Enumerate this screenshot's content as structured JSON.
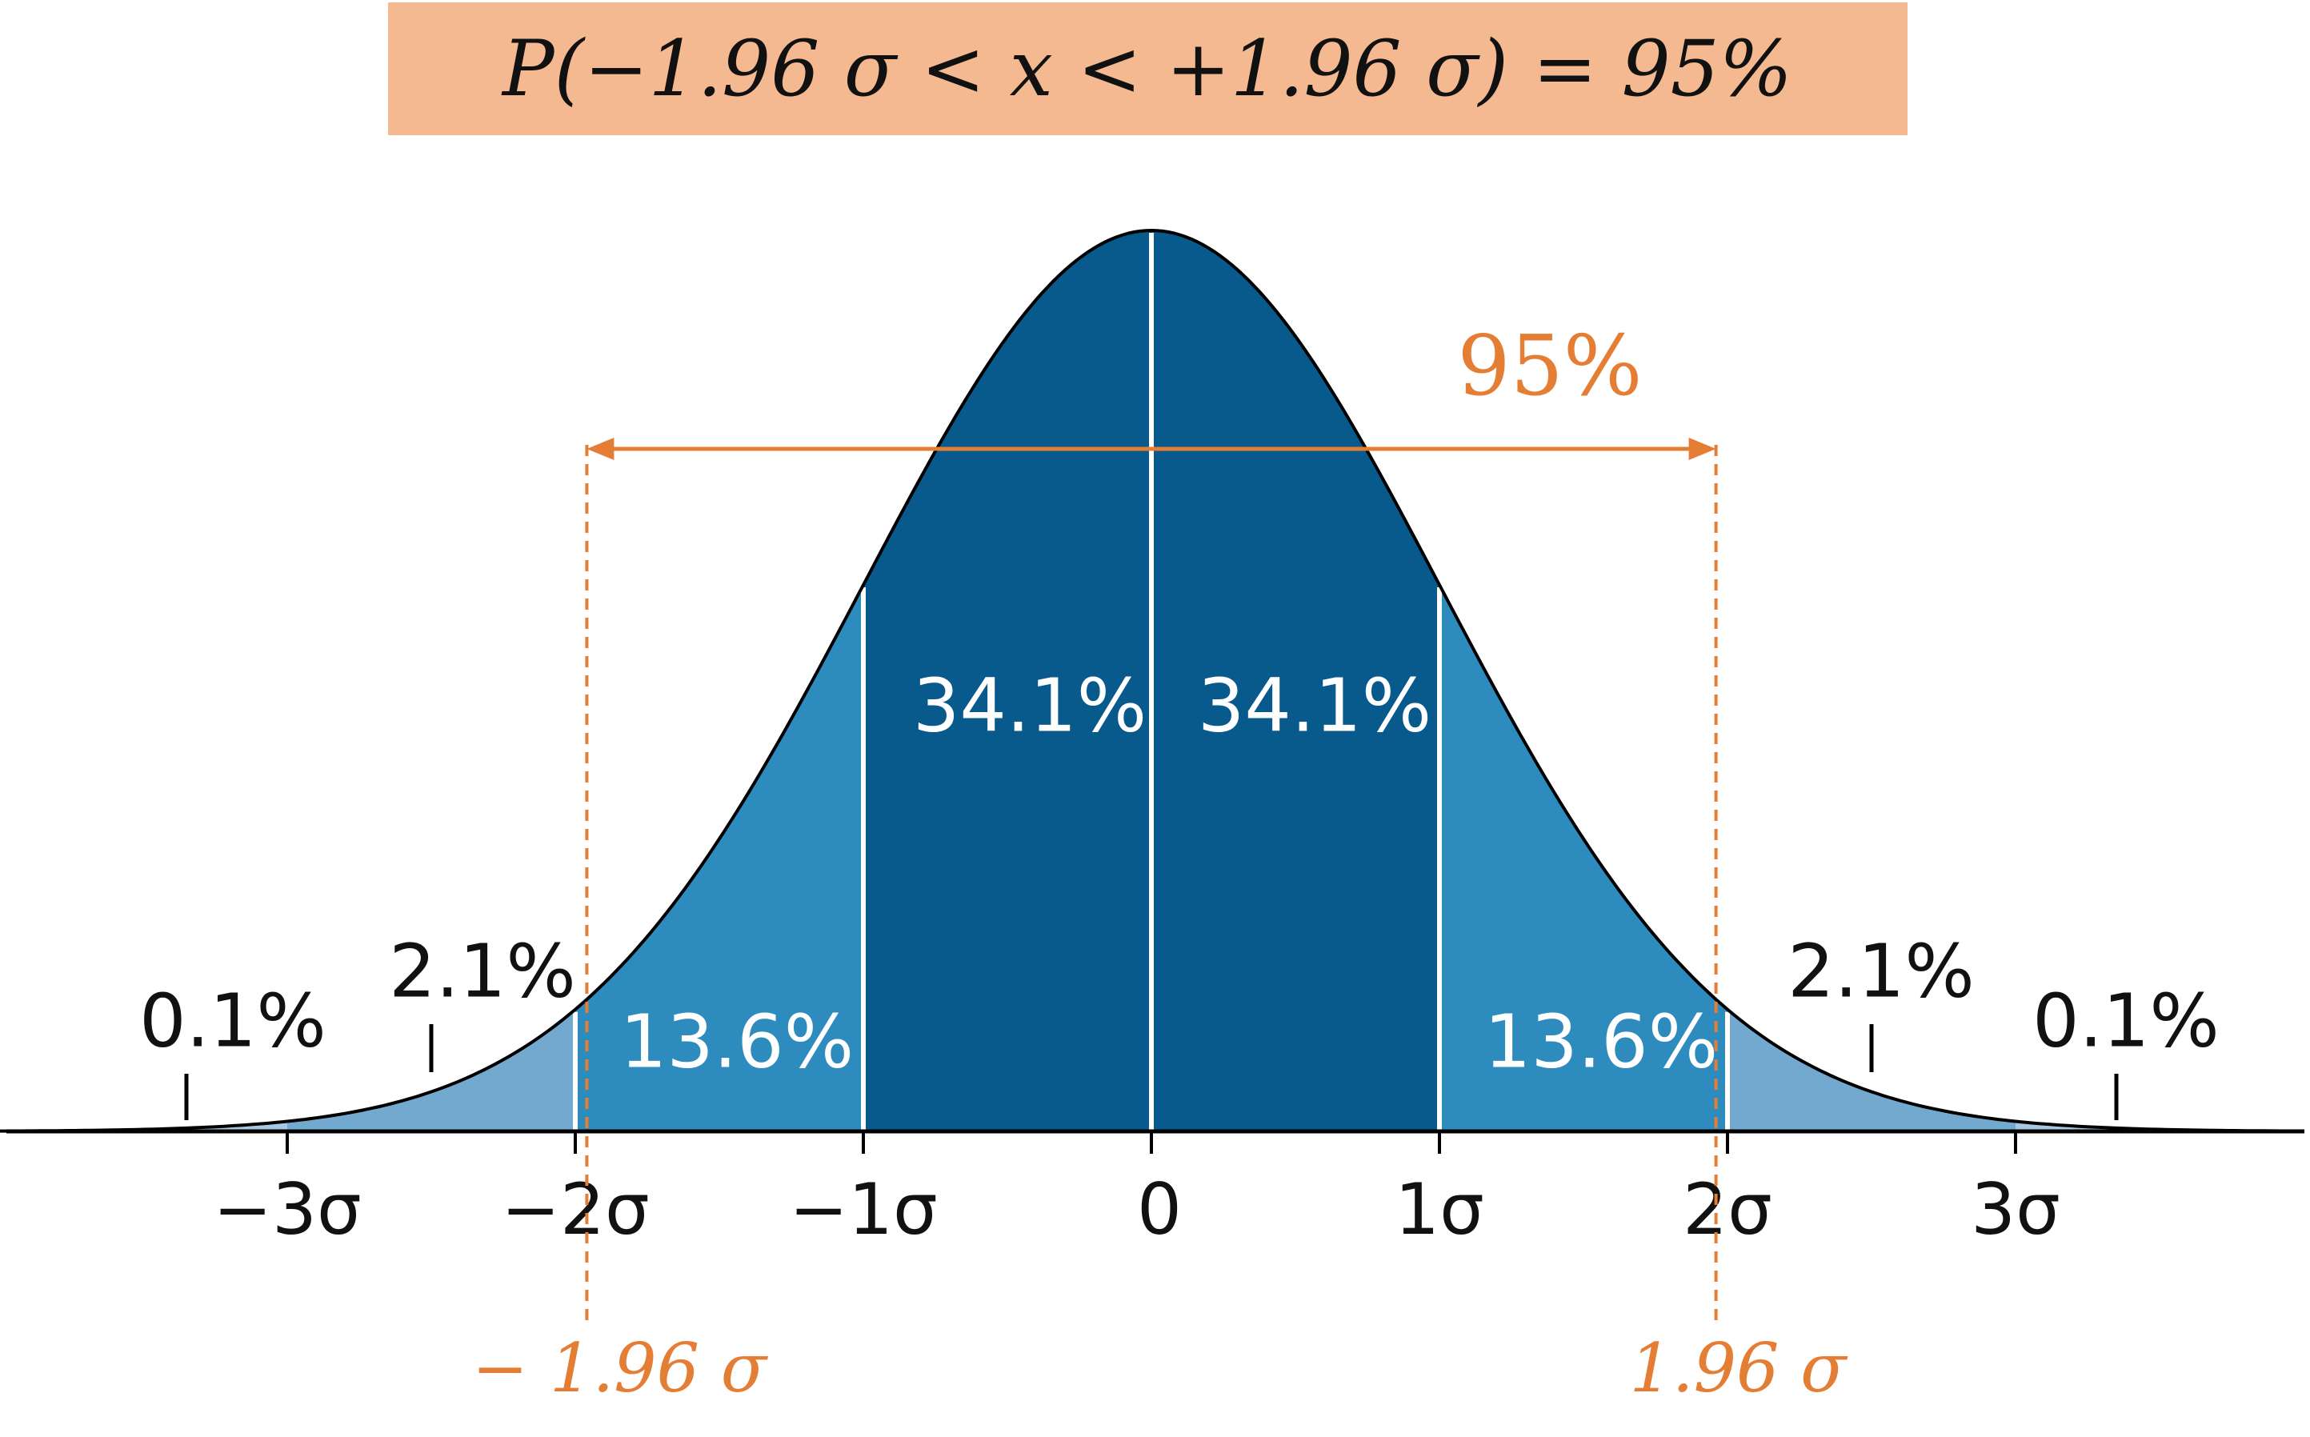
{
  "formula": {
    "text": "P(−1.96 σ < x < +1.96 σ) = 95%",
    "background": "#f4b990"
  },
  "colors": {
    "band_1sigma": "#08598c",
    "band_2sigma": "#2e8bbd",
    "band_3sigma": "#74a9cf",
    "band_tail": "#a6c8e2",
    "curve": "#000000",
    "divider": "#ffffff",
    "highlight": "#e57e35",
    "text_dark": "#111111",
    "text_light": "#ffffff"
  },
  "chart_data": {
    "type": "area",
    "distribution": "standard-normal",
    "xlim": [
      -4,
      4
    ],
    "ticks": [
      {
        "value": -3,
        "label": "−3σ"
      },
      {
        "value": -2,
        "label": "−2σ"
      },
      {
        "value": -1,
        "label": "−1σ"
      },
      {
        "value": 0,
        "label": "0"
      },
      {
        "value": 1,
        "label": "1σ"
      },
      {
        "value": 2,
        "label": "2σ"
      },
      {
        "value": 3,
        "label": "3σ"
      }
    ],
    "bands": [
      {
        "from": -1,
        "to": 0,
        "percent": "34.1%",
        "color_key": "band_1sigma"
      },
      {
        "from": 0,
        "to": 1,
        "percent": "34.1%",
        "color_key": "band_1sigma"
      },
      {
        "from": -2,
        "to": -1,
        "percent": "13.6%",
        "color_key": "band_2sigma"
      },
      {
        "from": 1,
        "to": 2,
        "percent": "13.6%",
        "color_key": "band_2sigma"
      },
      {
        "from": -3,
        "to": -2,
        "percent": "2.1%",
        "color_key": "band_3sigma"
      },
      {
        "from": 2,
        "to": 3,
        "percent": "2.1%",
        "color_key": "band_3sigma"
      },
      {
        "from": -4,
        "to": -3,
        "percent": "0.1%",
        "color_key": "band_tail"
      },
      {
        "from": 3,
        "to": 4,
        "percent": "0.1%",
        "color_key": "band_tail"
      }
    ],
    "interval": {
      "lower": -1.96,
      "upper": 1.96,
      "lower_label": "− 1.96 σ",
      "upper_label": "1.96 σ",
      "coverage_label": "95%"
    }
  }
}
